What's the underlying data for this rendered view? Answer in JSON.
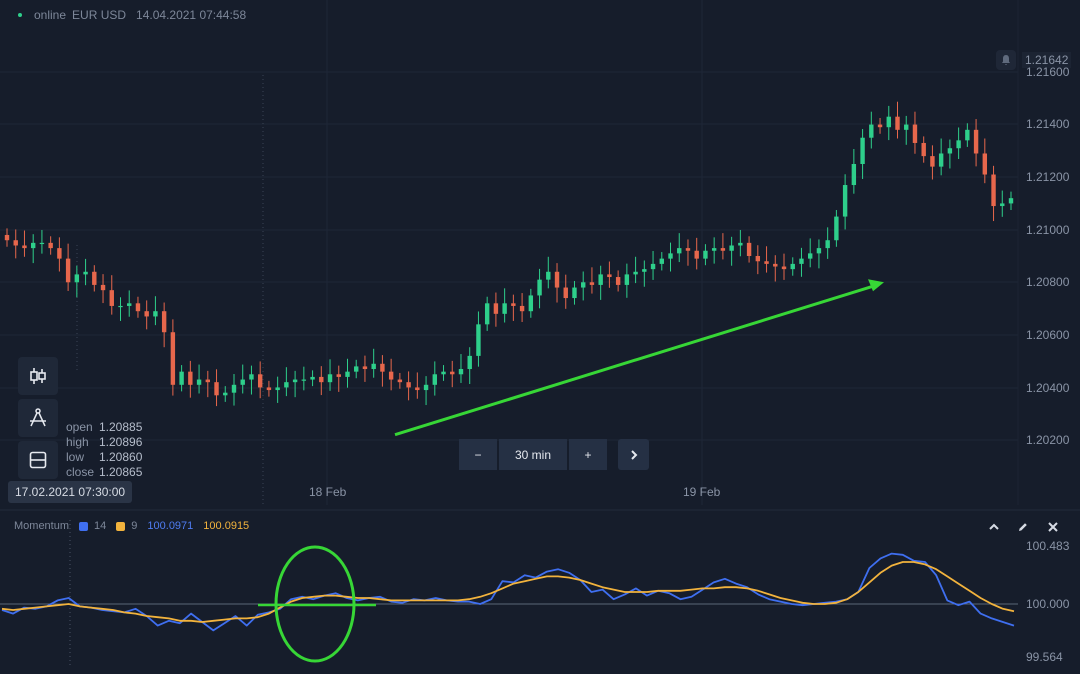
{
  "header": {
    "status": "online",
    "symbol": "EUR USD",
    "timestamp": "14.04.2021 07:44:58"
  },
  "price_axis": {
    "current": "1.21642",
    "ticks": [
      "1.21600",
      "1.21400",
      "1.21200",
      "1.21000",
      "1.20800",
      "1.20600",
      "1.20400",
      "1.20200"
    ]
  },
  "x_axis": {
    "ticks": [
      "18 Feb",
      "19 Feb"
    ]
  },
  "crosshair_date": "17.02.2021 07:30:00",
  "ohlc": {
    "open_label": "open",
    "open": "1.20885",
    "high_label": "high",
    "high": "1.20896",
    "low_label": "low",
    "low": "1.20860",
    "close_label": "close",
    "close": "1.20865"
  },
  "timeframe": {
    "minus": "−",
    "label": "30 min",
    "plus": "+"
  },
  "momentum": {
    "title": "Momentum",
    "p1": "14",
    "p2": "9",
    "v1": "100.0971",
    "v2": "100.0915",
    "axis": [
      "100.483",
      "100.000",
      "99.564"
    ]
  },
  "tools": [
    "candles-icon",
    "drawing-icon",
    "layout-icon"
  ],
  "colors": {
    "bg": "#161d2b",
    "up": "#2ecf8b",
    "down": "#e7674c",
    "momentum": "#3f6ff0",
    "signal": "#f2b33d",
    "annotation": "#37d636"
  },
  "chart_data": [
    {
      "type": "candlestick",
      "title": "EUR USD",
      "ylim": [
        1.202,
        1.2164
      ],
      "x_labels": [
        "18 Feb",
        "19 Feb"
      ],
      "trend_arrow": {
        "from": 1.2022,
        "to": 1.208
      },
      "close": [
        1.2096,
        1.2094,
        1.2093,
        1.2095,
        1.2095,
        1.2093,
        1.2089,
        1.208,
        1.2083,
        1.2084,
        1.2079,
        1.2077,
        1.2071,
        1.2071,
        1.2072,
        1.2069,
        1.2067,
        1.2069,
        1.2061,
        1.2041,
        1.2046,
        1.2041,
        1.2043,
        1.2042,
        1.2037,
        1.2038,
        1.2041,
        1.2043,
        1.2045,
        1.204,
        1.2039,
        1.204,
        1.2042,
        1.2043,
        1.2043,
        1.2044,
        1.2042,
        1.2045,
        1.2044,
        1.2046,
        1.2048,
        1.2047,
        1.2049,
        1.2046,
        1.2043,
        1.2042,
        1.204,
        1.2039,
        1.2041,
        1.2045,
        1.2046,
        1.2045,
        1.2047,
        1.2052,
        1.2064,
        1.2072,
        1.2068,
        1.2072,
        1.2071,
        1.2069,
        1.2075,
        1.2081,
        1.2084,
        1.2078,
        1.2074,
        1.2078,
        1.208,
        1.2079,
        1.2083,
        1.2082,
        1.2079,
        1.2083,
        1.2084,
        1.2085,
        1.2087,
        1.2089,
        1.2091,
        1.2093,
        1.2092,
        1.2089,
        1.2092,
        1.2093,
        1.2092,
        1.2094,
        1.2095,
        1.209,
        1.2088,
        1.2087,
        1.2086,
        1.2085,
        1.2087,
        1.2089,
        1.2091,
        1.2093,
        1.2096,
        1.2105,
        1.2117,
        1.2125,
        1.2135,
        1.214,
        1.2139,
        1.2143,
        1.2138,
        1.214,
        1.2133,
        1.2128,
        1.2124,
        1.2129,
        1.2131,
        1.2134,
        1.2138,
        1.2129,
        1.2121,
        1.2109,
        1.211,
        1.2112
      ]
    },
    {
      "type": "line",
      "title": "Momentum",
      "ylim": [
        99.5,
        100.58
      ],
      "series": [
        {
          "name": "14",
          "values": [
            99.95,
            99.92,
            99.97,
            99.96,
            99.98,
            100.03,
            100.05,
            99.98,
            99.97,
            99.95,
            99.94,
            99.93,
            99.96,
            99.9,
            99.82,
            99.86,
            99.84,
            99.92,
            99.85,
            99.78,
            99.84,
            99.9,
            99.82,
            99.91,
            99.93,
            99.96,
            100.04,
            100.06,
            100.04,
            100.07,
            100.09,
            100.05,
            100.03,
            100.05,
            100.06,
            100.02,
            100.01,
            100.04,
            100.03,
            100.05,
            100.03,
            100.02,
            100.02,
            100.0,
            100.04,
            100.19,
            100.18,
            100.24,
            100.22,
            100.27,
            100.29,
            100.26,
            100.2,
            100.1,
            100.12,
            100.04,
            100.08,
            100.13,
            100.07,
            100.11,
            100.09,
            100.04,
            100.06,
            100.12,
            100.18,
            100.21,
            100.17,
            100.14,
            100.08,
            100.04,
            100.02,
            100.0,
            99.99,
            100.0,
            100.01,
            100.02,
            100.04,
            100.1,
            100.3,
            100.38,
            100.42,
            100.41,
            100.36,
            100.35,
            100.24,
            100.03,
            99.99,
            100.02,
            99.92,
            99.88,
            99.85,
            99.82
          ]
        },
        {
          "name": "9",
          "values": [
            99.96,
            99.95,
            99.96,
            99.97,
            99.98,
            99.99,
            100.0,
            99.98,
            99.97,
            99.96,
            99.95,
            99.93,
            99.92,
            99.9,
            99.89,
            99.88,
            99.86,
            99.86,
            99.85,
            99.86,
            99.87,
            99.88,
            99.88,
            99.89,
            99.92,
            99.97,
            100.02,
            100.05,
            100.06,
            100.07,
            100.07,
            100.06,
            100.05,
            100.05,
            100.04,
            100.03,
            100.03,
            100.03,
            100.03,
            100.03,
            100.03,
            100.03,
            100.04,
            100.06,
            100.09,
            100.13,
            100.17,
            100.19,
            100.21,
            100.23,
            100.23,
            100.22,
            100.2,
            100.17,
            100.14,
            100.12,
            100.1,
            100.1,
            100.1,
            100.11,
            100.11,
            100.11,
            100.12,
            100.13,
            100.13,
            100.14,
            100.14,
            100.13,
            100.11,
            100.08,
            100.05,
            100.03,
            100.01,
            100.0,
            100.0,
            100.01,
            100.04,
            100.1,
            100.18,
            100.26,
            100.32,
            100.35,
            100.35,
            100.33,
            100.29,
            100.23,
            100.17,
            100.11,
            100.05,
            100.0,
            99.96,
            99.94
          ]
        }
      ]
    }
  ]
}
